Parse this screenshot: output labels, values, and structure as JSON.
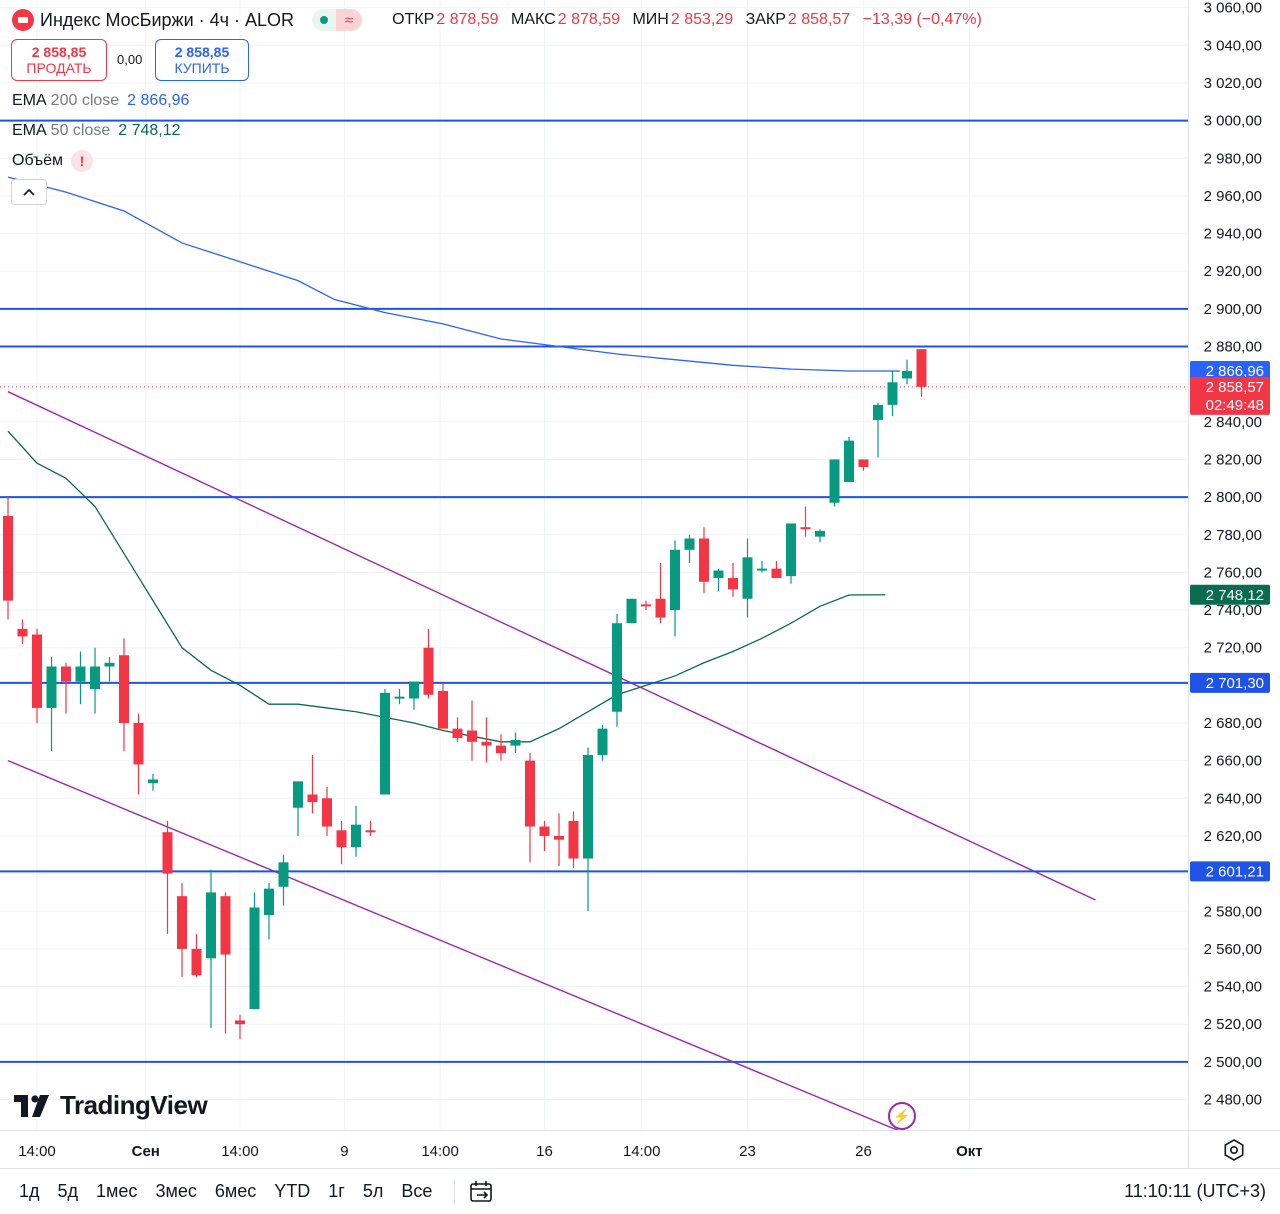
{
  "header": {
    "title": "Индекс МосБиржи · 4ч · ALOR",
    "ohlc": [
      {
        "k": "ОТКР",
        "v": "2 878,59"
      },
      {
        "k": "МАКС",
        "v": "2 878,59"
      },
      {
        "k": "МИН",
        "v": "2 853,29"
      },
      {
        "k": "ЗАКР",
        "v": "2 858,57"
      }
    ],
    "change": "−13,39 (−0,47%)",
    "market_status_icon": "green-dot-icon",
    "delay_icon": "wave-icon"
  },
  "trade": {
    "sell_price": "2 858,85",
    "sell_label": "ПРОДАТЬ",
    "spread": "0,00",
    "buy_price": "2 858,85",
    "buy_label": "КУПИТЬ"
  },
  "indicators": {
    "ema200": {
      "name": "EMA",
      "args": "200 close",
      "value": "2 866,96",
      "color": "#2962ff"
    },
    "ema50": {
      "name": "EMA",
      "args": "50 close",
      "value": "2 748,12",
      "color": "#0b6b4f"
    },
    "volume": {
      "name": "Объём",
      "warn": "!"
    }
  },
  "branding": {
    "logo_text": "TradingView"
  },
  "bottombar": {
    "ranges": [
      "1д",
      "5д",
      "1мес",
      "3мес",
      "6мес",
      "YTD",
      "1г",
      "5л",
      "Все"
    ],
    "time": "11:10:11 (UTC+3)"
  },
  "colors": {
    "up": "#089981",
    "down": "#f23645",
    "level": "#1e53e5",
    "channel": "#9c27b0",
    "ema200": "#2962ff",
    "ema50": "#0b6b4f"
  },
  "chart_data": {
    "type": "candlestick",
    "y_ticks": [
      2480,
      2500,
      2520,
      2540,
      2560,
      2580,
      2600,
      2620,
      2640,
      2660,
      2680,
      2700,
      2720,
      2740,
      2760,
      2780,
      2800,
      2820,
      2840,
      2860,
      2880,
      2900,
      2920,
      2940,
      2960,
      2980,
      3000,
      3020,
      3040,
      3060
    ],
    "y_tick_labels": [
      "2 480,00",
      "2 500,00",
      "2 520,00",
      "2 540,00",
      "2 560,00",
      "2 580,00",
      "2 600,00",
      "2 620,00",
      "2 640,00",
      "2 660,00",
      "2 680,00",
      "2 700,00",
      "2 720,00",
      "2 740,00",
      "2 760,00",
      "2 780,00",
      "2 800,00",
      "2 820,00",
      "2 840,00",
      "2 860,00",
      "2 880,00",
      "2 900,00",
      "2 920,00",
      "2 940,00",
      "2 960,00",
      "2 980,00",
      "3 000,00",
      "3 020,00",
      "3 040,00",
      "3 060,00"
    ],
    "ylim": [
      2468,
      3066
    ],
    "x_labels": [
      {
        "label": "14:00",
        "bar": 2
      },
      {
        "label": "Сен",
        "bar": 9.5
      },
      {
        "label": "14:00",
        "bar": 16
      },
      {
        "label": "9",
        "bar": 23.2
      },
      {
        "label": "14:00",
        "bar": 29.8
      },
      {
        "label": "16",
        "bar": 37
      },
      {
        "label": "14:00",
        "bar": 43.7
      },
      {
        "label": "23",
        "bar": 51
      },
      {
        "label": "26",
        "bar": 59
      },
      {
        "label": "Окт",
        "bar": 66.3
      }
    ],
    "candles": [
      [
        2790,
        2800,
        2735,
        2745
      ],
      [
        2730,
        2735,
        2722,
        2726
      ],
      [
        2727,
        2730,
        2680,
        2688
      ],
      [
        2688,
        2715,
        2665,
        2710
      ],
      [
        2710,
        2712,
        2685,
        2702
      ],
      [
        2702,
        2718,
        2690,
        2710
      ],
      [
        2698,
        2720,
        2685,
        2710
      ],
      [
        2710,
        2715,
        2702,
        2712
      ],
      [
        2716,
        2725,
        2665,
        2680
      ],
      [
        2680,
        2685,
        2642,
        2658
      ],
      [
        2648,
        2653,
        2644,
        2650
      ],
      [
        2622,
        2628,
        2568,
        2600
      ],
      [
        2588,
        2595,
        2545,
        2560
      ],
      [
        2560,
        2568,
        2545,
        2546
      ],
      [
        2555,
        2602,
        2518,
        2590
      ],
      [
        2588,
        2590,
        2515,
        2557
      ],
      [
        2522,
        2525,
        2512,
        2520
      ],
      [
        2528,
        2590,
        2532,
        2582
      ],
      [
        2578,
        2595,
        2565,
        2592
      ],
      [
        2593,
        2610,
        2583,
        2606
      ],
      [
        2635,
        2644,
        2620,
        2649
      ],
      [
        2642,
        2663,
        2632,
        2638
      ],
      [
        2640,
        2646,
        2620,
        2625
      ],
      [
        2623,
        2628,
        2605,
        2614
      ],
      [
        2614,
        2636,
        2609,
        2626
      ],
      [
        2623,
        2628,
        2620,
        2622
      ],
      [
        2642,
        2698,
        2642,
        2696
      ],
      [
        2694,
        2698,
        2690,
        2694
      ],
      [
        2693,
        2702,
        2687,
        2702
      ],
      [
        2720,
        2730,
        2693,
        2695
      ],
      [
        2697,
        2701,
        2680,
        2677
      ],
      [
        2677,
        2683,
        2670,
        2672
      ],
      [
        2676,
        2692,
        2660,
        2670
      ],
      [
        2670,
        2683,
        2659,
        2668
      ],
      [
        2668,
        2674,
        2660,
        2664
      ],
      [
        2668,
        2675,
        2664,
        2671
      ],
      [
        2660,
        2664,
        2606,
        2625
      ],
      [
        2625,
        2628,
        2612,
        2620
      ],
      [
        2620,
        2632,
        2604,
        2618
      ],
      [
        2628,
        2633,
        2603,
        2608
      ],
      [
        2608,
        2667,
        2580,
        2663
      ],
      [
        2663,
        2679,
        2660,
        2677
      ],
      [
        2686,
        2738,
        2678,
        2733
      ],
      [
        2733,
        2745,
        2733,
        2746
      ],
      [
        2743,
        2745,
        2740,
        2742
      ],
      [
        2746,
        2765,
        2733,
        2736
      ],
      [
        2740,
        2777,
        2726,
        2772
      ],
      [
        2772,
        2780,
        2765,
        2778
      ],
      [
        2778,
        2784,
        2749,
        2755
      ],
      [
        2757,
        2762,
        2750,
        2761
      ],
      [
        2757,
        2765,
        2747,
        2751
      ],
      [
        2746,
        2778,
        2736,
        2768
      ],
      [
        2762,
        2766,
        2760,
        2762
      ],
      [
        2762,
        2766,
        2758,
        2757
      ],
      [
        2758,
        2785,
        2754,
        2786
      ],
      [
        2784,
        2795,
        2779,
        2783
      ],
      [
        2779,
        2783,
        2776,
        2782
      ],
      [
        2797,
        2820,
        2795,
        2820
      ],
      [
        2808,
        2832,
        2810,
        2830
      ],
      [
        2820,
        2820,
        2814,
        2816
      ],
      [
        2841,
        2850,
        2821,
        2849
      ],
      [
        2849,
        2867,
        2843,
        2861
      ],
      [
        2863,
        2873,
        2860,
        2867
      ],
      [
        2878.59,
        2878.59,
        2853.29,
        2858.57
      ]
    ],
    "horizontal_levels": [
      3000,
      2900,
      2880,
      2800,
      2701.3,
      2601.21,
      2500
    ],
    "level_labels": {
      "2701.30": "2 701,30",
      "2601.21": "2 601,21"
    },
    "ema200_points": [
      [
        0,
        2970
      ],
      [
        4,
        2962
      ],
      [
        8,
        2952
      ],
      [
        12,
        2935
      ],
      [
        16,
        2925
      ],
      [
        20,
        2915
      ],
      [
        22.5,
        2905
      ],
      [
        26,
        2898
      ],
      [
        30,
        2892
      ],
      [
        34,
        2884
      ],
      [
        38,
        2880
      ],
      [
        42,
        2876
      ],
      [
        46,
        2873
      ],
      [
        50,
        2870
      ],
      [
        54,
        2868
      ],
      [
        58,
        2867
      ],
      [
        61.5,
        2866.96
      ]
    ],
    "ema50_points": [
      [
        0,
        2835
      ],
      [
        2,
        2818
      ],
      [
        4,
        2810
      ],
      [
        6,
        2795
      ],
      [
        8,
        2770
      ],
      [
        10,
        2745
      ],
      [
        12,
        2720
      ],
      [
        14,
        2708
      ],
      [
        16,
        2700
      ],
      [
        18,
        2690
      ],
      [
        20,
        2690
      ],
      [
        22,
        2688
      ],
      [
        24,
        2686
      ],
      [
        26,
        2683
      ],
      [
        28,
        2680
      ],
      [
        30,
        2676
      ],
      [
        32,
        2673
      ],
      [
        34,
        2670
      ],
      [
        36,
        2670
      ],
      [
        38,
        2677
      ],
      [
        40,
        2686
      ],
      [
        42,
        2695
      ],
      [
        44,
        2700
      ],
      [
        46,
        2705
      ],
      [
        48,
        2712
      ],
      [
        50,
        2718
      ],
      [
        52,
        2725
      ],
      [
        54,
        2733
      ],
      [
        56,
        2742
      ],
      [
        58,
        2748
      ],
      [
        60.5,
        2748.12
      ]
    ],
    "channel_upper": [
      [
        0,
        2856
      ],
      [
        75,
        2586
      ]
    ],
    "channel_lower": [
      [
        0,
        2660
      ],
      [
        75,
        2420
      ]
    ],
    "price_labels": {
      "ema200": "2 866,96",
      "last": "2 858,57",
      "countdown": "02:49:48",
      "ema50": "2 748,12"
    },
    "last_price": 2858.57,
    "ema50_label_value": 2748.12
  }
}
